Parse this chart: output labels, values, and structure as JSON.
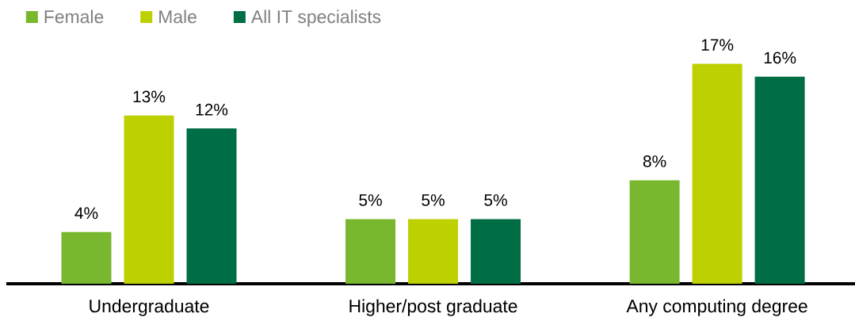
{
  "chart_data": {
    "type": "bar",
    "categories": [
      "Undergraduate",
      "Higher/post graduate",
      "Any computing degree"
    ],
    "series": [
      {
        "name": "Female",
        "color": "#78b72e",
        "values": [
          4,
          5,
          8
        ],
        "value_labels": [
          "4%",
          "5%",
          "8%"
        ]
      },
      {
        "name": "Male",
        "color": "#bdd000",
        "values": [
          13,
          5,
          17
        ],
        "value_labels": [
          "13%",
          "5%",
          "17%"
        ]
      },
      {
        "name": "All IT specialists",
        "color": "#006e44",
        "values": [
          12,
          5,
          16
        ],
        "value_labels": [
          "12%",
          "5%",
          "16%"
        ]
      }
    ],
    "legend": "top left"
  }
}
